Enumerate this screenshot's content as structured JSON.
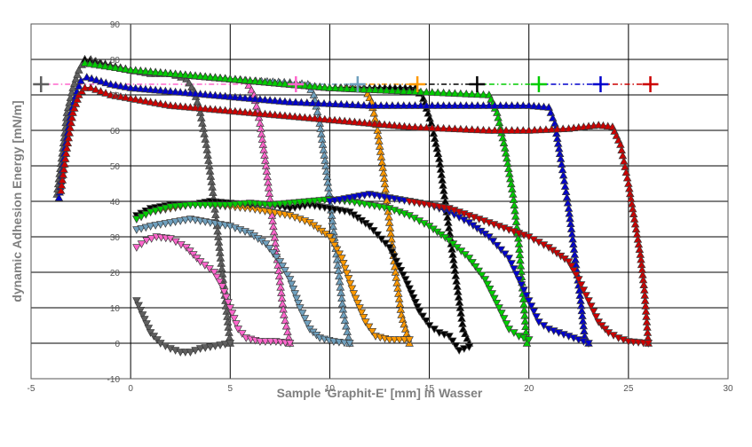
{
  "chart_data": {
    "type": "line",
    "xlabel": "Sample 'Graphit-E' [mm] in Wasser",
    "ylabel": "dynamic Adhesion Energy  [mN/m]",
    "xlim": [
      -5,
      30
    ],
    "ylim": [
      -10,
      90
    ],
    "xticks": [
      "-5",
      "0",
      "5",
      "10",
      "15",
      "20",
      "25",
      "30"
    ],
    "yticks": [
      "-10",
      "0",
      "10",
      "20",
      "30",
      "40",
      "50",
      "60",
      "70",
      "80",
      "90"
    ],
    "grid": true,
    "legend": "none",
    "reference_line": {
      "y": 73,
      "x": [
        -4.5,
        26
      ]
    },
    "series": [
      {
        "color": "#5f5f5f",
        "marker": "+",
        "marker_x": -4.5,
        "advancing": [
          [
            -3.7,
            42
          ],
          [
            -3.4,
            55
          ],
          [
            -3.2,
            65
          ],
          [
            -2.9,
            72
          ],
          [
            -2.6,
            77
          ],
          [
            -2.3,
            80
          ],
          [
            -2.0,
            80
          ],
          [
            -1.5,
            79
          ],
          [
            -1,
            78
          ],
          [
            0,
            77
          ],
          [
            1,
            76
          ],
          [
            2,
            76
          ],
          [
            2.8,
            74.5
          ],
          [
            3.2,
            71
          ],
          [
            3.5,
            65
          ],
          [
            3.8,
            56
          ],
          [
            4.1,
            44
          ],
          [
            4.4,
            30
          ],
          [
            4.7,
            15
          ],
          [
            5.0,
            0
          ]
        ],
        "receding": [
          [
            0.3,
            12
          ],
          [
            0.6,
            8
          ],
          [
            1.0,
            3
          ],
          [
            1.5,
            0
          ],
          [
            2.0,
            -1.5
          ],
          [
            2.5,
            -2.5
          ],
          [
            3,
            -2.5
          ],
          [
            3.5,
            -1.5
          ],
          [
            4,
            -1
          ],
          [
            4.5,
            -0.5
          ],
          [
            5,
            0
          ]
        ]
      },
      {
        "color": "#ff66cc",
        "marker": "+",
        "marker_x": 8.3,
        "advancing": [
          [
            -2.3,
            79
          ],
          [
            -1,
            78
          ],
          [
            0,
            77
          ],
          [
            1,
            76.5
          ],
          [
            2,
            76
          ],
          [
            3,
            75.5
          ],
          [
            4,
            75
          ],
          [
            5,
            74.5
          ],
          [
            5.8,
            74
          ],
          [
            6.2,
            70
          ],
          [
            6.5,
            62
          ],
          [
            6.8,
            50
          ],
          [
            7.1,
            36
          ],
          [
            7.4,
            22
          ],
          [
            7.7,
            8
          ],
          [
            8.0,
            0
          ]
        ],
        "receding": [
          [
            0.3,
            27
          ],
          [
            0.8,
            29
          ],
          [
            1.3,
            30
          ],
          [
            2,
            29.5
          ],
          [
            2.8,
            27
          ],
          [
            3.5,
            23
          ],
          [
            4.2,
            20
          ],
          [
            4.6,
            16
          ],
          [
            5.0,
            10
          ],
          [
            5.4,
            4
          ],
          [
            5.8,
            1.5
          ],
          [
            6.5,
            0.5
          ],
          [
            7.3,
            0.5
          ],
          [
            8.0,
            0
          ]
        ]
      },
      {
        "color": "#6fa0be",
        "marker": "+",
        "marker_x": 11.4,
        "advancing": [
          [
            -2.3,
            80
          ],
          [
            0,
            77
          ],
          [
            2,
            76
          ],
          [
            4,
            75
          ],
          [
            6,
            74
          ],
          [
            8,
            73.5
          ],
          [
            8.9,
            73
          ],
          [
            9.2,
            70
          ],
          [
            9.5,
            62
          ],
          [
            9.8,
            50
          ],
          [
            10.1,
            36
          ],
          [
            10.4,
            22
          ],
          [
            10.7,
            8
          ],
          [
            11.0,
            0
          ]
        ],
        "receding": [
          [
            0.3,
            32
          ],
          [
            1,
            33
          ],
          [
            2,
            34
          ],
          [
            3,
            35
          ],
          [
            4,
            34
          ],
          [
            5,
            33
          ],
          [
            6,
            31
          ],
          [
            6.8,
            28
          ],
          [
            7.5,
            23
          ],
          [
            8,
            18
          ],
          [
            8.5,
            10
          ],
          [
            9,
            4
          ],
          [
            9.5,
            1.5
          ],
          [
            10.2,
            0.5
          ],
          [
            11,
            0
          ]
        ]
      },
      {
        "color": "#ff9900",
        "marker": "+",
        "marker_x": 14.4,
        "advancing": [
          [
            -2.3,
            80
          ],
          [
            0,
            77
          ],
          [
            2,
            76
          ],
          [
            4,
            75
          ],
          [
            6,
            74
          ],
          [
            8,
            73
          ],
          [
            10,
            72
          ],
          [
            11.8,
            71.5
          ],
          [
            12.1,
            68
          ],
          [
            12.4,
            60
          ],
          [
            12.7,
            48
          ],
          [
            13.0,
            34
          ],
          [
            13.3,
            20
          ],
          [
            13.6,
            8
          ],
          [
            14.0,
            0
          ]
        ],
        "receding": [
          [
            0.3,
            35
          ],
          [
            1,
            37
          ],
          [
            2,
            38
          ],
          [
            3,
            39
          ],
          [
            4,
            39
          ],
          [
            5,
            38.5
          ],
          [
            6,
            38
          ],
          [
            7,
            37
          ],
          [
            8,
            36
          ],
          [
            9,
            34
          ],
          [
            10,
            30
          ],
          [
            10.6,
            24
          ],
          [
            11.2,
            14
          ],
          [
            11.8,
            6
          ],
          [
            12.3,
            2
          ],
          [
            13,
            1
          ],
          [
            14,
            1
          ]
        ]
      },
      {
        "color": "#000000",
        "marker": "+",
        "marker_x": 17.4,
        "advancing": [
          [
            -2.3,
            80
          ],
          [
            0,
            77
          ],
          [
            2,
            76
          ],
          [
            4,
            75
          ],
          [
            6,
            74
          ],
          [
            8,
            73
          ],
          [
            10,
            72
          ],
          [
            12,
            72
          ],
          [
            14.3,
            72
          ],
          [
            14.7,
            69
          ],
          [
            15.1,
            62
          ],
          [
            15.5,
            52
          ],
          [
            15.8,
            40
          ],
          [
            16.1,
            28
          ],
          [
            16.4,
            16
          ],
          [
            16.7,
            4
          ],
          [
            17.0,
            0
          ]
        ],
        "receding": [
          [
            0.3,
            36
          ],
          [
            1,
            38
          ],
          [
            2,
            39
          ],
          [
            3,
            39
          ],
          [
            4,
            40
          ],
          [
            5,
            39.5
          ],
          [
            6,
            39
          ],
          [
            7,
            39
          ],
          [
            8,
            38
          ],
          [
            9,
            39
          ],
          [
            10,
            38
          ],
          [
            11,
            37
          ],
          [
            12,
            33
          ],
          [
            13,
            27
          ],
          [
            13.8,
            18
          ],
          [
            14.5,
            9
          ],
          [
            15,
            5
          ],
          [
            15.5,
            3
          ],
          [
            16,
            2
          ],
          [
            16.5,
            -2
          ],
          [
            17,
            -1
          ]
        ]
      },
      {
        "color": "#00cc00",
        "marker": "+",
        "marker_x": 20.5,
        "advancing": [
          [
            -2.3,
            79
          ],
          [
            0,
            77
          ],
          [
            2,
            76
          ],
          [
            4,
            75
          ],
          [
            6,
            74
          ],
          [
            8,
            73
          ],
          [
            10,
            72
          ],
          [
            12,
            71.5
          ],
          [
            14,
            71
          ],
          [
            16,
            70.5
          ],
          [
            18,
            70
          ],
          [
            18.4,
            65
          ],
          [
            18.8,
            55
          ],
          [
            19.2,
            42
          ],
          [
            19.5,
            28
          ],
          [
            19.7,
            14
          ],
          [
            19.9,
            0
          ]
        ],
        "receding": [
          [
            0.3,
            35
          ],
          [
            1,
            37
          ],
          [
            2,
            38.5
          ],
          [
            3,
            39
          ],
          [
            4,
            39
          ],
          [
            5,
            39
          ],
          [
            6,
            39.5
          ],
          [
            7,
            39
          ],
          [
            8,
            39.5
          ],
          [
            9,
            40
          ],
          [
            10,
            40.5
          ],
          [
            11,
            40
          ],
          [
            12,
            39
          ],
          [
            13,
            38
          ],
          [
            14,
            36
          ],
          [
            15,
            33
          ],
          [
            16,
            29
          ],
          [
            17,
            24
          ],
          [
            17.8,
            18
          ],
          [
            18.5,
            10
          ],
          [
            19,
            4
          ],
          [
            19.5,
            2
          ],
          [
            20,
            1
          ]
        ]
      },
      {
        "color": "#0000cc",
        "marker": "+",
        "marker_x": 23.6,
        "advancing": [
          [
            -3.6,
            41
          ],
          [
            -3.3,
            55
          ],
          [
            -3.0,
            65
          ],
          [
            -2.7,
            71
          ],
          [
            -2.5,
            74
          ],
          [
            -2.2,
            75
          ],
          [
            -1,
            73
          ],
          [
            0,
            72
          ],
          [
            2,
            71
          ],
          [
            4,
            70
          ],
          [
            6,
            69
          ],
          [
            8,
            68
          ],
          [
            10,
            67.5
          ],
          [
            12,
            67
          ],
          [
            14,
            67
          ],
          [
            16,
            67
          ],
          [
            18,
            67
          ],
          [
            20,
            67
          ],
          [
            21,
            66.5
          ],
          [
            21.3,
            62
          ],
          [
            21.6,
            52
          ],
          [
            22,
            38
          ],
          [
            22.3,
            25
          ],
          [
            22.6,
            12
          ],
          [
            22.8,
            2
          ],
          [
            23.0,
            0
          ]
        ],
        "receding": [
          [
            10,
            40
          ],
          [
            11,
            41
          ],
          [
            12,
            42
          ],
          [
            13,
            41
          ],
          [
            14,
            40
          ],
          [
            15,
            39
          ],
          [
            16,
            37
          ],
          [
            17,
            34
          ],
          [
            18,
            30
          ],
          [
            19,
            24
          ],
          [
            19.5,
            18
          ],
          [
            20,
            12
          ],
          [
            20.5,
            6
          ],
          [
            21,
            4
          ],
          [
            21.5,
            3
          ],
          [
            22,
            2
          ],
          [
            22.5,
            1
          ],
          [
            23,
            0
          ]
        ]
      },
      {
        "color": "#cc0000",
        "marker": "+",
        "marker_x": 26.1,
        "advancing": [
          [
            -3.5,
            43
          ],
          [
            -3.2,
            55
          ],
          [
            -2.9,
            65
          ],
          [
            -2.6,
            70
          ],
          [
            -2.3,
            72
          ],
          [
            -2.0,
            72
          ],
          [
            -1,
            70
          ],
          [
            0,
            69
          ],
          [
            2,
            67
          ],
          [
            4,
            66
          ],
          [
            6,
            65
          ],
          [
            8,
            64
          ],
          [
            10,
            63
          ],
          [
            12,
            62
          ],
          [
            14,
            61
          ],
          [
            16,
            60.5
          ],
          [
            18,
            60
          ],
          [
            20,
            60
          ],
          [
            22,
            60.5
          ],
          [
            23.5,
            61.5
          ],
          [
            24.2,
            61
          ],
          [
            24.6,
            56
          ],
          [
            25,
            45
          ],
          [
            25.3,
            35
          ],
          [
            25.6,
            25
          ],
          [
            25.8,
            15
          ],
          [
            26.0,
            0
          ]
        ],
        "receding": [
          [
            14,
            40
          ],
          [
            15,
            39
          ],
          [
            16,
            38
          ],
          [
            17,
            36
          ],
          [
            18,
            34
          ],
          [
            19,
            32
          ],
          [
            20,
            30
          ],
          [
            21,
            27
          ],
          [
            22,
            23
          ],
          [
            22.5,
            18
          ],
          [
            23,
            12
          ],
          [
            23.5,
            6
          ],
          [
            24,
            3
          ],
          [
            24.5,
            1.5
          ],
          [
            25,
            0.5
          ],
          [
            26,
            0
          ]
        ]
      }
    ]
  }
}
